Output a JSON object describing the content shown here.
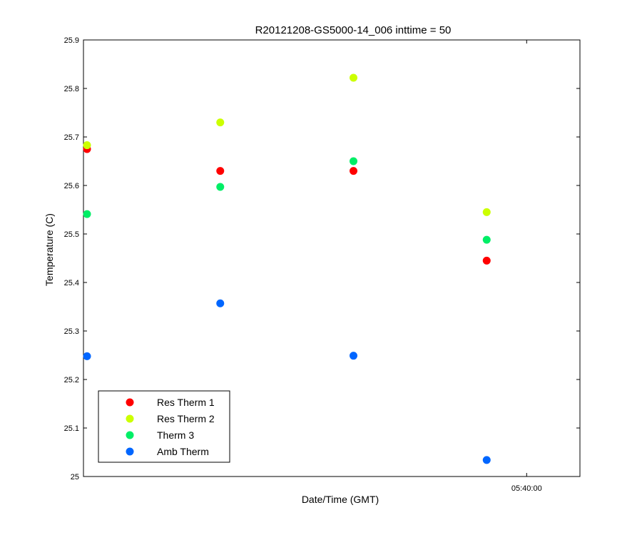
{
  "chart_data": {
    "type": "scatter",
    "title": "R20121208-GS5000-14_006 inttime = 50",
    "xlabel": "Date/Time (GMT)",
    "ylabel": "Temperature (C)",
    "ylim": [
      25,
      25.9
    ],
    "yticks": [
      "25",
      "25.1",
      "25.2",
      "25.3",
      "25.4",
      "25.5",
      "25.6",
      "25.7",
      "25.8",
      "25.9"
    ],
    "xlim": [
      0,
      3.7
    ],
    "xticks": [
      {
        "value": 3.3,
        "label": "05:40:00"
      }
    ],
    "grid": false,
    "legend_position": "bottom-left",
    "series": [
      {
        "name": "Res Therm 1",
        "color": "#ff0000",
        "x": [
          0,
          1,
          2,
          3
        ],
        "y": [
          25.675,
          25.63,
          25.63,
          25.445
        ]
      },
      {
        "name": "Res Therm 2",
        "color": "#ccff00",
        "x": [
          0,
          1,
          2,
          3
        ],
        "y": [
          25.683,
          25.73,
          25.822,
          25.545
        ]
      },
      {
        "name": "Therm 3",
        "color": "#00ee66",
        "x": [
          0,
          1,
          2,
          3
        ],
        "y": [
          25.541,
          25.597,
          25.65,
          25.488
        ]
      },
      {
        "name": "Amb Therm",
        "color": "#0066ff",
        "x": [
          0,
          1,
          2,
          3
        ],
        "y": [
          25.248,
          25.357,
          25.249,
          25.034
        ]
      }
    ]
  }
}
